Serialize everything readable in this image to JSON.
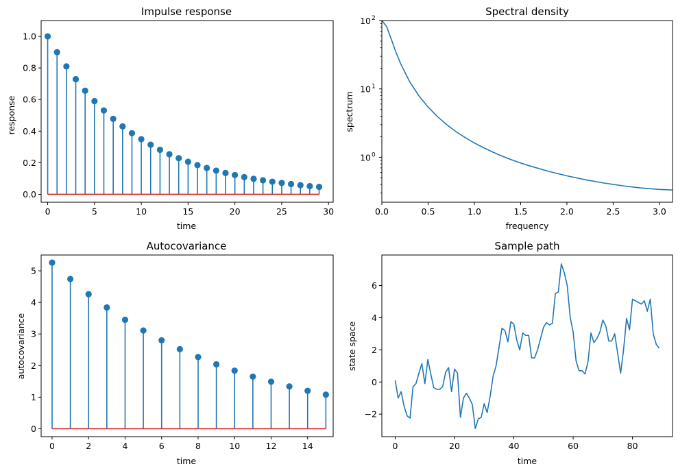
{
  "colors": {
    "series": "#1f77b4",
    "baseline": "#d62728",
    "axis": "#000000"
  },
  "chart_data": [
    {
      "id": "impulse",
      "type": "stem",
      "title": "Impulse response",
      "xlabel": "time",
      "ylabel": "response",
      "xlim": [
        -0.7,
        30.5
      ],
      "ylim": [
        -0.05,
        1.1
      ],
      "xticks": [
        0,
        5,
        10,
        15,
        20,
        25,
        30
      ],
      "xtick_labels": [
        "0",
        "5",
        "10",
        "15",
        "20",
        "25",
        "30"
      ],
      "yticks": [
        0.0,
        0.2,
        0.4,
        0.6,
        0.8,
        1.0
      ],
      "ytick_labels": [
        "0.0",
        "0.2",
        "0.4",
        "0.6",
        "0.8",
        "1.0"
      ],
      "x": [
        0,
        1,
        2,
        3,
        4,
        5,
        6,
        7,
        8,
        9,
        10,
        11,
        12,
        13,
        14,
        15,
        16,
        17,
        18,
        19,
        20,
        21,
        22,
        23,
        24,
        25,
        26,
        27,
        28,
        29
      ],
      "values": [
        1.0,
        0.9,
        0.81,
        0.729,
        0.656,
        0.59,
        0.531,
        0.478,
        0.43,
        0.387,
        0.349,
        0.314,
        0.282,
        0.254,
        0.229,
        0.206,
        0.185,
        0.167,
        0.15,
        0.135,
        0.122,
        0.109,
        0.098,
        0.089,
        0.08,
        0.072,
        0.065,
        0.058,
        0.052,
        0.047
      ]
    },
    {
      "id": "spectral",
      "type": "line",
      "title": "Spectral density",
      "xlabel": "frequency",
      "ylabel": "spectrum",
      "yscale": "log",
      "xlim": [
        0,
        3.14159
      ],
      "ylim": [
        0.22,
        100
      ],
      "xticks": [
        0.0,
        0.5,
        1.0,
        1.5,
        2.0,
        2.5,
        3.0
      ],
      "xtick_labels": [
        "0.0",
        "0.5",
        "1.0",
        "1.5",
        "2.0",
        "2.5",
        "3.0"
      ],
      "yticks": [
        1,
        10,
        100
      ],
      "ytick_bases": [
        "10",
        "10",
        "10"
      ],
      "ytick_exps": [
        "0",
        "1",
        "2"
      ],
      "x": [
        0,
        0.05,
        0.1,
        0.15,
        0.2,
        0.3,
        0.4,
        0.5,
        0.6,
        0.7,
        0.8,
        0.9,
        1.0,
        1.1,
        1.2,
        1.3,
        1.4,
        1.5,
        1.6,
        1.8,
        2.0,
        2.2,
        2.4,
        2.6,
        2.8,
        3.0,
        3.14159
      ],
      "values": [
        100,
        82.6,
        54.3,
        35.1,
        23.9,
        12.8,
        7.95,
        5.42,
        3.95,
        3.01,
        2.38,
        1.94,
        1.62,
        1.38,
        1.19,
        1.04,
        0.922,
        0.826,
        0.747,
        0.624,
        0.535,
        0.469,
        0.42,
        0.383,
        0.356,
        0.339,
        0.332
      ]
    },
    {
      "id": "autocov",
      "type": "stem",
      "title": "Autocovariance",
      "xlabel": "time",
      "ylabel": "autocovariance",
      "xlim": [
        -0.6,
        15.4
      ],
      "ylim": [
        -0.25,
        5.5
      ],
      "xticks": [
        0,
        2,
        4,
        6,
        8,
        10,
        12,
        14
      ],
      "xtick_labels": [
        "0",
        "2",
        "4",
        "6",
        "8",
        "10",
        "12",
        "14"
      ],
      "yticks": [
        0,
        1,
        2,
        3,
        4,
        5
      ],
      "ytick_labels": [
        "0",
        "1",
        "2",
        "3",
        "4",
        "5"
      ],
      "x": [
        0,
        1,
        2,
        3,
        4,
        5,
        6,
        7,
        8,
        9,
        10,
        11,
        12,
        13,
        14,
        15
      ],
      "values": [
        5.26,
        4.74,
        4.26,
        3.84,
        3.45,
        3.11,
        2.8,
        2.52,
        2.27,
        2.04,
        1.84,
        1.65,
        1.49,
        1.34,
        1.2,
        1.08
      ]
    },
    {
      "id": "path",
      "type": "line",
      "title": "Sample path",
      "xlabel": "time",
      "ylabel": "state space",
      "xlim": [
        -4.5,
        93.5
      ],
      "ylim": [
        -3.4,
        7.9
      ],
      "xticks": [
        0,
        20,
        40,
        60,
        80
      ],
      "xtick_labels": [
        "0",
        "20",
        "40",
        "60",
        "80"
      ],
      "yticks": [
        -2,
        0,
        2,
        4,
        6
      ],
      "ytick_labels": [
        "−2",
        "0",
        "2",
        "4",
        "6"
      ],
      "x": [
        0,
        1,
        2,
        3,
        4,
        5,
        6,
        7,
        8,
        9,
        10,
        11,
        12,
        13,
        14,
        15,
        16,
        17,
        18,
        19,
        20,
        21,
        22,
        23,
        24,
        25,
        26,
        27,
        28,
        29,
        30,
        31,
        32,
        33,
        34,
        35,
        36,
        37,
        38,
        39,
        40,
        41,
        42,
        43,
        44,
        45,
        46,
        47,
        48,
        49,
        50,
        51,
        52,
        53,
        54,
        55,
        56,
        57,
        58,
        59,
        60,
        61,
        62,
        63,
        64,
        65,
        66,
        67,
        68,
        69,
        70,
        71,
        72,
        73,
        74,
        75,
        76,
        77,
        78,
        79,
        80,
        81,
        82,
        83,
        84,
        85,
        86,
        87,
        88,
        89
      ],
      "values": [
        0.1,
        -1.0,
        -0.6,
        -1.5,
        -2.1,
        -2.25,
        -0.3,
        -0.1,
        0.55,
        1.15,
        -0.1,
        1.4,
        0.5,
        -0.35,
        -0.45,
        -0.45,
        -0.3,
        0.6,
        0.9,
        -0.6,
        0.8,
        0.55,
        -2.2,
        -1.0,
        -0.7,
        -1.0,
        -1.4,
        -2.9,
        -2.3,
        -2.2,
        -1.35,
        -1.9,
        -0.9,
        0.35,
        1.0,
        2.15,
        3.35,
        3.2,
        2.5,
        3.75,
        3.6,
        2.6,
        2.0,
        3.05,
        2.9,
        2.9,
        1.5,
        1.5,
        2.0,
        2.7,
        3.4,
        3.7,
        3.55,
        3.65,
        5.5,
        5.6,
        7.35,
        6.8,
        6.0,
        4.05,
        3.1,
        1.3,
        0.7,
        0.7,
        0.5,
        1.25,
        3.05,
        2.45,
        2.7,
        3.1,
        3.85,
        3.5,
        2.55,
        2.55,
        3.0,
        1.8,
        0.55,
        2.0,
        3.95,
        3.25,
        5.15,
        5.05,
        4.95,
        4.85,
        5.05,
        4.4,
        5.15,
        3.0,
        2.35,
        2.1
      ]
    }
  ]
}
